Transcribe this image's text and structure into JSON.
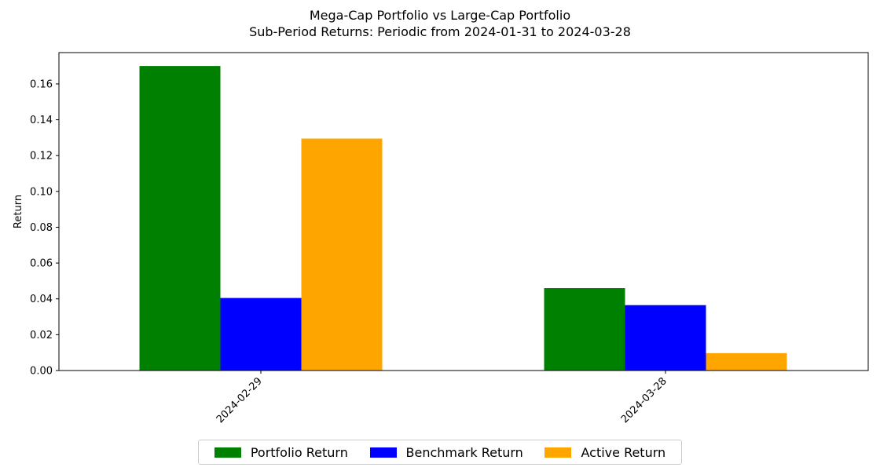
{
  "chart_data": {
    "type": "bar",
    "title": "Mega-Cap Portfolio vs Large-Cap Portfolio",
    "subtitle": "Sub-Period Returns: Periodic from 2024-01-31 to 2024-03-28",
    "xlabel": "",
    "ylabel": "Return",
    "categories": [
      "2024-02-29",
      "2024-03-28"
    ],
    "series": [
      {
        "name": "Portfolio Return",
        "color": "#008000",
        "values": [
          0.17,
          0.046
        ]
      },
      {
        "name": "Benchmark Return",
        "color": "#0000ff",
        "values": [
          0.0405,
          0.0365
        ]
      },
      {
        "name": "Active Return",
        "color": "#ffa500",
        "values": [
          0.1295,
          0.0097
        ]
      }
    ],
    "ylim": [
      0,
      0.1775
    ],
    "yticks": [
      "0.00",
      "0.02",
      "0.04",
      "0.06",
      "0.08",
      "0.10",
      "0.12",
      "0.14",
      "0.16"
    ],
    "grid": false,
    "legend_position": "bottom-center"
  }
}
